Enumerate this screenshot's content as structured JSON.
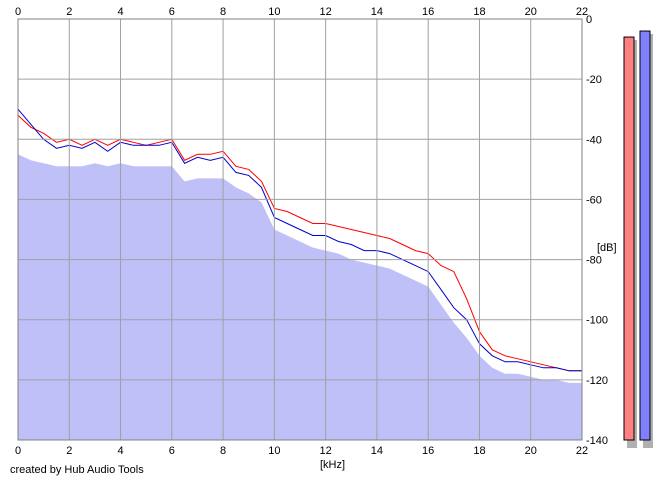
{
  "chart_data": {
    "type": "area",
    "title": "",
    "xlabel": "[kHz]",
    "ylabel": "[dB]",
    "xlim": [
      0,
      22
    ],
    "ylim": [
      -140,
      0
    ],
    "x_ticks": [
      0,
      2,
      4,
      6,
      8,
      10,
      12,
      14,
      16,
      18,
      20,
      22
    ],
    "x_tick_labels": [
      "0",
      "2",
      "4",
      "6",
      "8",
      "10",
      "12",
      "14",
      "16",
      "18",
      "20",
      "22"
    ],
    "y_ticks": [
      0,
      -20,
      -40,
      -60,
      -80,
      -100,
      -120,
      -140
    ],
    "y_tick_labels": [
      "0",
      "-20",
      "-40",
      "-60",
      "-80",
      "-100",
      "-120",
      "-140"
    ],
    "grid": true,
    "series": [
      {
        "color": "#ff0000",
        "style": "line",
        "x": [
          0,
          0.5,
          1,
          1.5,
          2,
          2.5,
          3,
          3.5,
          4,
          4.5,
          5,
          5.5,
          6,
          6.5,
          7,
          7.5,
          8,
          8.5,
          9,
          9.5,
          10,
          10.5,
          11,
          11.5,
          12,
          12.5,
          13,
          13.5,
          14,
          14.5,
          15,
          15.5,
          16,
          16.5,
          17,
          17.5,
          18,
          18.5,
          19,
          19.5,
          20,
          20.5,
          21,
          21.5,
          22
        ],
        "values": [
          -32,
          -36,
          -38,
          -41,
          -40,
          -42,
          -40,
          -42,
          -40,
          -41,
          -42,
          -41,
          -40,
          -47,
          -45,
          -45,
          -44,
          -49,
          -50,
          -54,
          -63,
          -64,
          -66,
          -68,
          -68,
          -69,
          -70,
          -71,
          -72,
          -73,
          -75,
          -77,
          -78,
          -82,
          -84,
          -93,
          -104,
          -110,
          -112,
          -113,
          -114,
          -115,
          -116,
          -117,
          -117
        ]
      },
      {
        "color": "#0000cc",
        "style": "line",
        "x": [
          0,
          0.5,
          1,
          1.5,
          2,
          2.5,
          3,
          3.5,
          4,
          4.5,
          5,
          5.5,
          6,
          6.5,
          7,
          7.5,
          8,
          8.5,
          9,
          9.5,
          10,
          10.5,
          11,
          11.5,
          12,
          12.5,
          13,
          13.5,
          14,
          14.5,
          15,
          15.5,
          16,
          16.5,
          17,
          17.5,
          18,
          18.5,
          19,
          19.5,
          20,
          20.5,
          21,
          21.5,
          22
        ],
        "values": [
          -30,
          -35,
          -40,
          -43,
          -42,
          -43,
          -41,
          -44,
          -41,
          -42,
          -42,
          -42,
          -41,
          -48,
          -46,
          -47,
          -46,
          -51,
          -52,
          -56,
          -66,
          -68,
          -70,
          -72,
          -72,
          -74,
          -75,
          -77,
          -77,
          -78,
          -80,
          -82,
          -84,
          -90,
          -96,
          -100,
          -108,
          -112,
          -114,
          -114,
          -115,
          -116,
          -116,
          -117,
          -117
        ]
      },
      {
        "color": "#c0c0f8",
        "style": "fill",
        "x": [
          0,
          0.5,
          1,
          1.5,
          2,
          2.5,
          3,
          3.5,
          4,
          4.5,
          5,
          5.5,
          6,
          6.5,
          7,
          7.5,
          8,
          8.5,
          9,
          9.5,
          10,
          10.5,
          11,
          11.5,
          12,
          12.5,
          13,
          13.5,
          14,
          14.5,
          15,
          15.5,
          16,
          16.5,
          17,
          17.5,
          18,
          18.5,
          19,
          19.5,
          20,
          20.5,
          21,
          21.5,
          22
        ],
        "values": [
          -45,
          -47,
          -48,
          -49,
          -49,
          -49,
          -48,
          -49,
          -48,
          -49,
          -49,
          -49,
          -49,
          -54,
          -53,
          -53,
          -53,
          -56,
          -58,
          -61,
          -70,
          -72,
          -74,
          -76,
          -77,
          -78,
          -80,
          -81,
          -82,
          -83,
          -85,
          -87,
          -89,
          -95,
          -101,
          -106,
          -112,
          -116,
          -118,
          -118,
          -119,
          -120,
          -120,
          -121,
          -121
        ]
      }
    ],
    "level_meters": [
      {
        "color": "#ff8080",
        "level_db": -6
      },
      {
        "color": "#8080ff",
        "level_db": -4
      }
    ]
  },
  "footer": {
    "credit": "created by Hub Audio Tools"
  }
}
